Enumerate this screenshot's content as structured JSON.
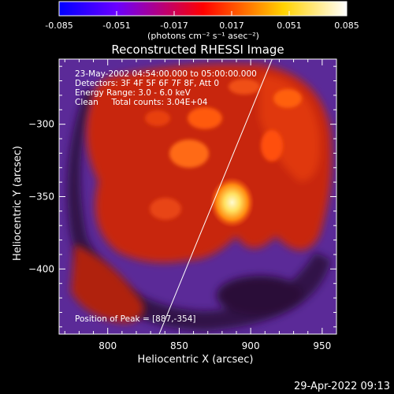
{
  "window_footer": {
    "timestamp": "29-Apr-2022 09:13"
  },
  "colorbar": {
    "tick_labels": [
      "-0.085",
      "-0.051",
      "-0.017",
      "0.017",
      "0.051",
      "0.085"
    ],
    "unit_label": "(photons cm⁻² s⁻¹ asec⁻²)",
    "vmin": -0.085,
    "vmax": 0.085,
    "colors": [
      "#0000ff",
      "#6a00ff",
      "#ff0000",
      "#ffd200",
      "#ffffff"
    ]
  },
  "chart_data": {
    "type": "heatmap",
    "title": "Reconstructed RHESSI Image",
    "xlabel": "Heliocentric X (arcsec)",
    "ylabel": "Heliocentric Y (arcsec)",
    "x_range": [
      766,
      960
    ],
    "y_range": [
      -445,
      -255
    ],
    "x_ticks": [
      800,
      850,
      900,
      950
    ],
    "y_ticks": [
      -300,
      -350,
      -400
    ],
    "x_tick_labels": [
      "800",
      "850",
      "900",
      "950"
    ],
    "y_tick_labels": [
      "−300",
      "−350",
      "−400"
    ],
    "annotations": [
      "23-May-2002 04:54:00.000 to 05:00:00.000",
      "Detectors: 3F 4F 5F 6F 7F 8F, Att 0",
      "Energy Range: 3.0 - 6.0 keV",
      "Clean     Total counts: 3.04E+04"
    ],
    "peak_label": "Position of Peak = [887,-354]",
    "peak": {
      "x": 887,
      "y": -354,
      "value": 0.085
    },
    "limb_line": [
      [
        836,
        -445
      ],
      [
        915,
        -255
      ]
    ],
    "image_colors": {
      "background": "#5b2a98",
      "dark": "#2a1038",
      "emission": "#d83010",
      "hot": "#ff5a10",
      "core": "#fff8a0"
    }
  }
}
